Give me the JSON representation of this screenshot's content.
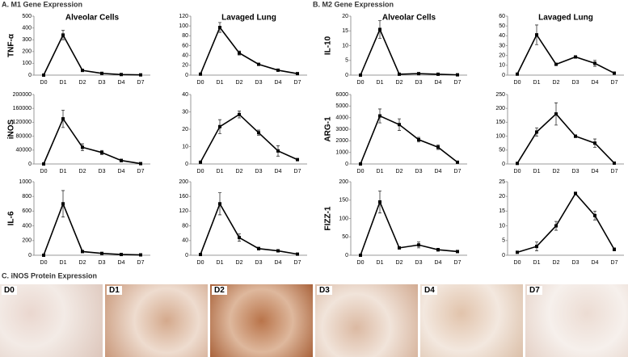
{
  "sections": [
    "A. M1 Gene Expression",
    "B. M2 Gene Expression",
    "C. iNOS Protein Expression"
  ],
  "images": [
    {
      "label": "D0"
    },
    {
      "label": "D1"
    },
    {
      "label": "D2"
    },
    {
      "label": "D3"
    },
    {
      "label": "D4"
    },
    {
      "label": "D7"
    }
  ],
  "chart_data": [
    {
      "type": "line",
      "title": "Alveolar Cells",
      "ylabel": "TNF-α",
      "color": "#000",
      "categories": [
        "D0",
        "D1",
        "D2",
        "D3",
        "D4",
        "D7"
      ],
      "values": [
        0,
        340,
        40,
        15,
        5,
        2
      ],
      "errors": [
        0,
        40,
        5,
        3,
        2,
        1
      ],
      "ylim": [
        0,
        500
      ],
      "yticks": [
        0,
        100,
        200,
        300,
        400,
        500
      ]
    },
    {
      "type": "line",
      "title": "Lavaged Lung",
      "color": "#000",
      "categories": [
        "D0",
        "D1",
        "D2",
        "D3",
        "D4",
        "D7"
      ],
      "values": [
        2,
        97,
        45,
        22,
        10,
        3
      ],
      "errors": [
        0,
        10,
        4,
        2,
        2,
        1
      ],
      "ylim": [
        0,
        120
      ],
      "yticks": [
        0,
        20,
        40,
        60,
        80,
        100,
        120
      ]
    },
    {
      "type": "line",
      "ylabel": "iNOS",
      "color": "#000",
      "categories": [
        "D0",
        "D1",
        "D2",
        "D3",
        "D4",
        "D7"
      ],
      "values": [
        0,
        130000,
        48000,
        33000,
        10000,
        1000
      ],
      "errors": [
        0,
        25000,
        10000,
        6000,
        4000,
        0
      ],
      "ylim": [
        0,
        200000
      ],
      "yticks": [
        0,
        40000,
        80000,
        120000,
        160000,
        200000
      ]
    },
    {
      "type": "line",
      "color": "#000",
      "categories": [
        "D0",
        "D1",
        "D2",
        "D3",
        "D4",
        "D7"
      ],
      "values": [
        1,
        21.5,
        28.5,
        18,
        7.5,
        2.5
      ],
      "errors": [
        0,
        4,
        2,
        1.5,
        3,
        0.5
      ],
      "ylim": [
        0,
        40
      ],
      "yticks": [
        0,
        10,
        20,
        30,
        40
      ]
    },
    {
      "type": "line",
      "ylabel": "IL-6",
      "color": "#000",
      "categories": [
        "D0",
        "D1",
        "D2",
        "D3",
        "D4",
        "D7"
      ],
      "values": [
        0,
        700,
        50,
        25,
        10,
        5
      ],
      "errors": [
        0,
        180,
        10,
        5,
        3,
        2
      ],
      "ylim": [
        0,
        1000
      ],
      "yticks": [
        0,
        200,
        400,
        600,
        800,
        1000
      ]
    },
    {
      "type": "line",
      "color": "#000",
      "categories": [
        "D0",
        "D1",
        "D2",
        "D3",
        "D4",
        "D7"
      ],
      "values": [
        2,
        140,
        48,
        18,
        12,
        3
      ],
      "errors": [
        0,
        30,
        10,
        4,
        3,
        1
      ],
      "ylim": [
        0,
        200
      ],
      "yticks": [
        0,
        40,
        80,
        120,
        160,
        200
      ]
    },
    {
      "type": "line",
      "title": "Alveolar Cells",
      "ylabel": "IL-10",
      "color": "#000",
      "categories": [
        "D0",
        "D1",
        "D2",
        "D3",
        "D4",
        "D7"
      ],
      "values": [
        0,
        15.5,
        0.3,
        0.5,
        0.3,
        0.1
      ],
      "errors": [
        0,
        3,
        0.2,
        0.2,
        0.1,
        0
      ],
      "ylim": [
        0,
        20
      ],
      "yticks": [
        0,
        5,
        10,
        15,
        20
      ]
    },
    {
      "type": "line",
      "title": "Lavaged Lung",
      "color": "#000",
      "categories": [
        "D0",
        "D1",
        "D2",
        "D3",
        "D4",
        "D7"
      ],
      "values": [
        1,
        41,
        11,
        18.5,
        12,
        2
      ],
      "errors": [
        0,
        10,
        1,
        1,
        3,
        1
      ],
      "ylim": [
        0,
        60
      ],
      "yticks": [
        0,
        10,
        20,
        30,
        40,
        50,
        60
      ]
    },
    {
      "type": "line",
      "ylabel": "ARG-1",
      "color": "#000",
      "categories": [
        "D0",
        "D1",
        "D2",
        "D3",
        "D4",
        "D7"
      ],
      "values": [
        0,
        4150,
        3400,
        2100,
        1450,
        150
      ],
      "errors": [
        0,
        600,
        500,
        200,
        200,
        0
      ],
      "ylim": [
        0,
        6000
      ],
      "yticks": [
        0,
        1000,
        2000,
        3000,
        4000,
        5000,
        6000
      ]
    },
    {
      "type": "line",
      "color": "#000",
      "categories": [
        "D0",
        "D1",
        "D2",
        "D3",
        "D4",
        "D7"
      ],
      "values": [
        2,
        115,
        180,
        100,
        75,
        3
      ],
      "errors": [
        0,
        15,
        40,
        5,
        15,
        1
      ],
      "ylim": [
        0,
        250
      ],
      "yticks": [
        0,
        50,
        100,
        150,
        200,
        250
      ]
    },
    {
      "type": "line",
      "ylabel": "FIZZ-1",
      "color": "#000",
      "categories": [
        "D0",
        "D1",
        "D2",
        "D3",
        "D4",
        "D7"
      ],
      "values": [
        0,
        145,
        20,
        28,
        15,
        10
      ],
      "errors": [
        0,
        30,
        3,
        8,
        4,
        2
      ],
      "ylim": [
        0,
        200
      ],
      "yticks": [
        0,
        50,
        100,
        150,
        200
      ]
    },
    {
      "type": "line",
      "color": "#000",
      "categories": [
        "D0",
        "D1",
        "D2",
        "D3",
        "D4",
        "D7"
      ],
      "values": [
        1,
        3,
        10,
        21,
        13.5,
        2
      ],
      "errors": [
        0,
        1.5,
        1.5,
        0.5,
        1.5,
        0.5
      ],
      "ylim": [
        0,
        25
      ],
      "yticks": [
        0,
        5,
        10,
        15,
        20,
        25
      ]
    }
  ]
}
